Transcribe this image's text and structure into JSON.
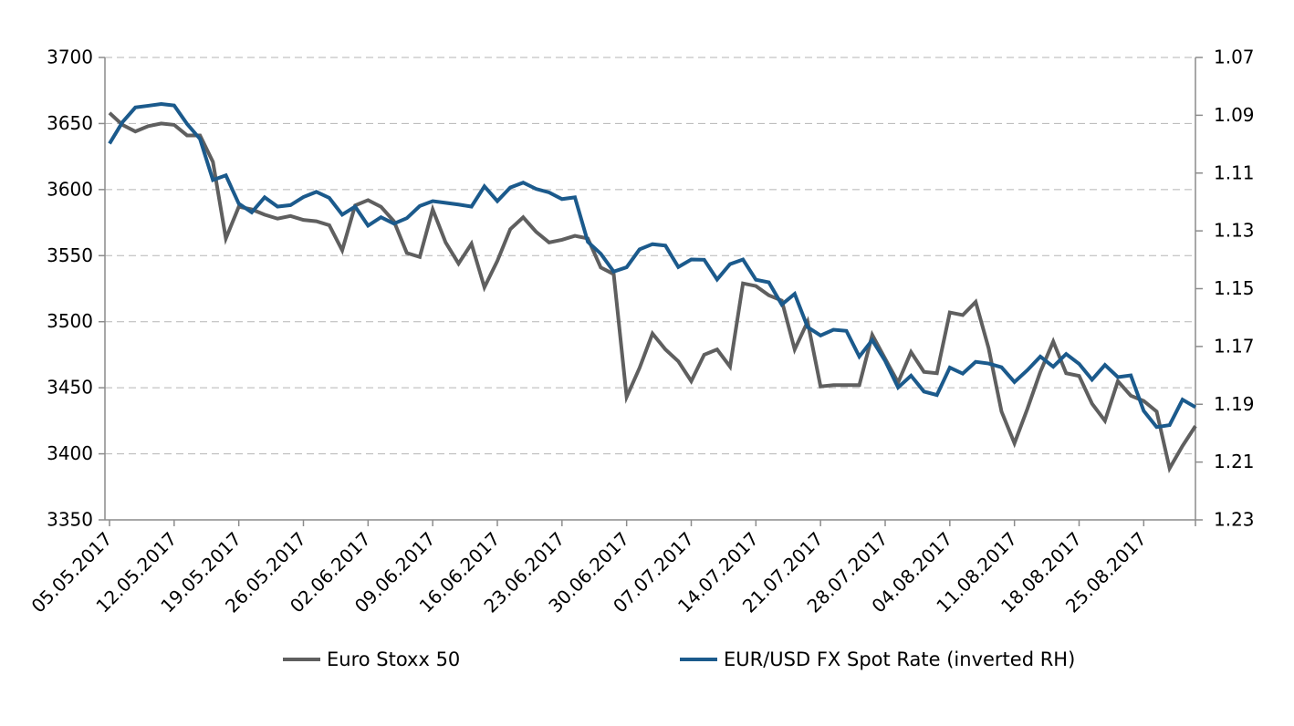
{
  "chart_data": {
    "type": "line",
    "title": "",
    "grid": "horizontal-dashed",
    "legend_position": "bottom",
    "x_tick_labels": [
      "05.05.2017",
      "12.05.2017",
      "19.05.2017",
      "26.05.2017",
      "02.06.2017",
      "09.06.2017",
      "16.06.2017",
      "23.06.2017",
      "30.06.2017",
      "07.07.2017",
      "14.07.2017",
      "21.07.2017",
      "28.07.2017",
      "04.08.2017",
      "11.08.2017",
      "18.08.2017",
      "25.08.2017"
    ],
    "x_tick_step_points": 5,
    "points_count": 85,
    "left_axis": {
      "min": 3350,
      "max": 3700,
      "step": 50,
      "tick_labels": [
        "3700",
        "3650",
        "3600",
        "3550",
        "3500",
        "3450",
        "3400",
        "3350"
      ]
    },
    "right_axis": {
      "min": 1.07,
      "max": 1.23,
      "step": 0.02,
      "inverted": true,
      "tick_labels": [
        "1.07",
        "1.09",
        "1.11",
        "1.13",
        "1.15",
        "1.17",
        "1.19",
        "1.21",
        "1.23"
      ]
    },
    "series": [
      {
        "name": "Euro Stoxx 50",
        "color": "#5f5f5f",
        "axis": "left",
        "values": [
          3658,
          3649,
          3644,
          3648,
          3650,
          3649,
          3641,
          3641,
          3621,
          3563,
          3587,
          3585,
          3581,
          3578,
          3580,
          3577,
          3576,
          3573,
          3554,
          3588,
          3592,
          3587,
          3576,
          3552,
          3549,
          3585,
          3560,
          3544,
          3559,
          3526,
          3546,
          3570,
          3579,
          3568,
          3560,
          3562,
          3565,
          3563,
          3541,
          3536,
          3443,
          3465,
          3491,
          3479,
          3470,
          3455,
          3475,
          3479,
          3466,
          3529,
          3527,
          3520,
          3516,
          3479,
          3500,
          3451,
          3452,
          3452,
          3452,
          3490,
          3472,
          3454,
          3477,
          3462,
          3461,
          3507,
          3505,
          3515,
          3480,
          3432,
          3408,
          3434,
          3462,
          3485,
          3461,
          3459,
          3438,
          3425,
          3455,
          3444,
          3440,
          3432,
          3389,
          3406,
          3421
        ]
      },
      {
        "name": "EUR/USD FX Spot Rate (inverted RH)",
        "color": "#1b5a8c",
        "axis": "right",
        "values": [
          1.0998,
          1.0924,
          1.0873,
          1.0867,
          1.0861,
          1.0866,
          1.093,
          1.0982,
          1.1124,
          1.1108,
          1.1206,
          1.1236,
          1.1184,
          1.1216,
          1.1211,
          1.1183,
          1.1165,
          1.1186,
          1.1244,
          1.1216,
          1.1282,
          1.1253,
          1.1275,
          1.1256,
          1.1214,
          1.1197,
          1.1203,
          1.1209,
          1.1216,
          1.1146,
          1.1197,
          1.115,
          1.1133,
          1.1155,
          1.1167,
          1.119,
          1.1184,
          1.1338,
          1.1379,
          1.1441,
          1.1426,
          1.1364,
          1.1346,
          1.1351,
          1.1425,
          1.1399,
          1.14,
          1.1468,
          1.1415,
          1.1399,
          1.1469,
          1.1478,
          1.1555,
          1.1518,
          1.1633,
          1.1662,
          1.1642,
          1.1646,
          1.1735,
          1.1678,
          1.175,
          1.1842,
          1.1801,
          1.1856,
          1.1868,
          1.1773,
          1.1794,
          1.1753,
          1.1759,
          1.1772,
          1.1823,
          1.1782,
          1.1735,
          1.177,
          1.1726,
          1.176,
          1.1815,
          1.1764,
          1.1806,
          1.18,
          1.1923,
          1.1979,
          1.1972,
          1.1884,
          1.191
        ]
      }
    ],
    "colors": {
      "gridline": "#b5b5b5",
      "axis_line": "#8c8c8c",
      "label_text": "#000000"
    }
  }
}
